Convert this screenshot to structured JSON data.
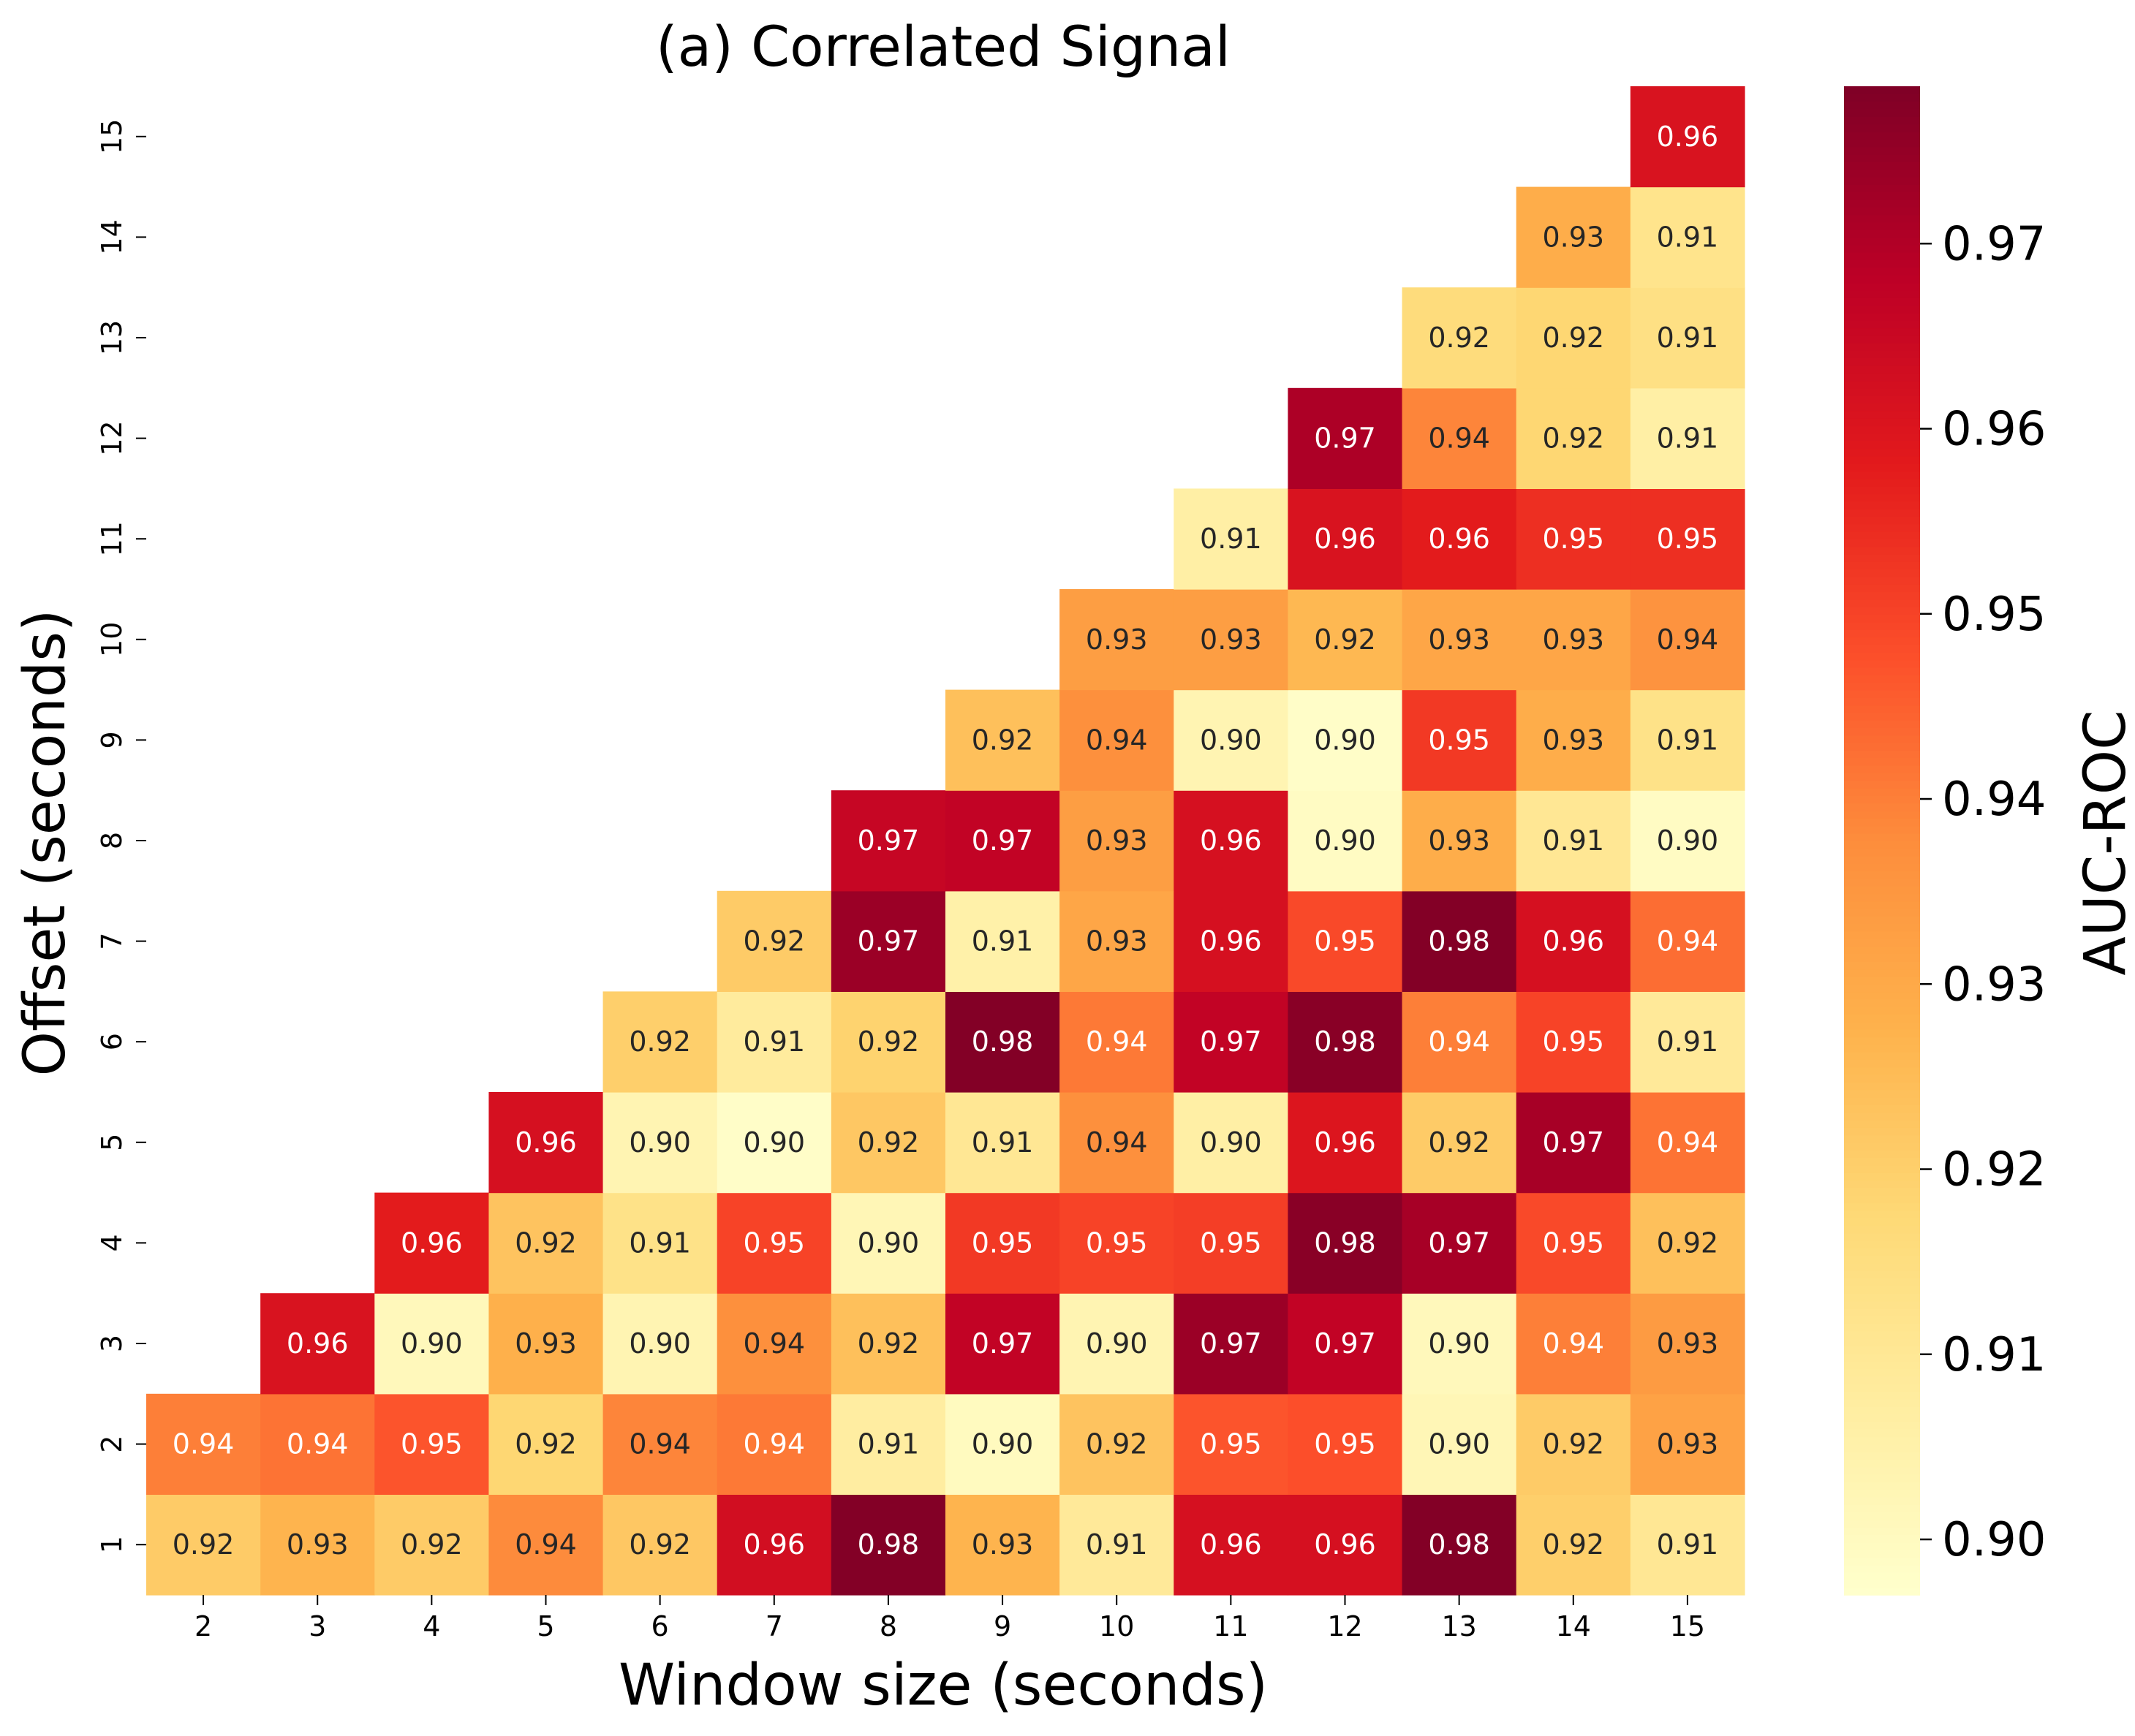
{
  "chart_data": {
    "type": "heatmap",
    "title": "(a) Correlated Signal",
    "xlabel": "Window size (seconds)",
    "ylabel": "Offset (seconds)",
    "x_categories": [
      "2",
      "3",
      "4",
      "5",
      "6",
      "7",
      "8",
      "9",
      "10",
      "11",
      "12",
      "13",
      "14",
      "15"
    ],
    "y_categories": [
      "1",
      "2",
      "3",
      "4",
      "5",
      "6",
      "7",
      "8",
      "9",
      "10",
      "11",
      "12",
      "13",
      "14",
      "15"
    ],
    "colorbar": {
      "label": "AUC-ROC",
      "colormap": "YlOrRd",
      "vmin": 0.897,
      "vmax": 0.9785,
      "ticks": [
        "0.90",
        "0.91",
        "0.92",
        "0.93",
        "0.94",
        "0.95",
        "0.96",
        "0.97"
      ]
    },
    "values": [
      [
        "0.92",
        "0.93",
        "0.92",
        "0.94",
        "0.92",
        "0.96",
        "0.98",
        "0.93",
        "0.91",
        "0.96",
        "0.96",
        "0.98",
        "0.92",
        "0.91"
      ],
      [
        "0.94",
        "0.94",
        "0.95",
        "0.92",
        "0.94",
        "0.94",
        "0.91",
        "0.90",
        "0.92",
        "0.95",
        "0.95",
        "0.90",
        "0.92",
        "0.93"
      ],
      [
        null,
        "0.96",
        "0.90",
        "0.93",
        "0.90",
        "0.94",
        "0.92",
        "0.97",
        "0.90",
        "0.97",
        "0.97",
        "0.90",
        "0.94",
        "0.93"
      ],
      [
        null,
        null,
        "0.96",
        "0.92",
        "0.91",
        "0.95",
        "0.90",
        "0.95",
        "0.95",
        "0.95",
        "0.98",
        "0.97",
        "0.95",
        "0.92"
      ],
      [
        null,
        null,
        null,
        "0.96",
        "0.90",
        "0.90",
        "0.92",
        "0.91",
        "0.94",
        "0.90",
        "0.96",
        "0.92",
        "0.97",
        "0.94"
      ],
      [
        null,
        null,
        null,
        null,
        "0.92",
        "0.91",
        "0.92",
        "0.98",
        "0.94",
        "0.97",
        "0.98",
        "0.94",
        "0.95",
        "0.91"
      ],
      [
        null,
        null,
        null,
        null,
        null,
        "0.92",
        "0.97",
        "0.91",
        "0.93",
        "0.96",
        "0.95",
        "0.98",
        "0.96",
        "0.94"
      ],
      [
        null,
        null,
        null,
        null,
        null,
        null,
        "0.97",
        "0.97",
        "0.93",
        "0.96",
        "0.90",
        "0.93",
        "0.91",
        "0.90"
      ],
      [
        null,
        null,
        null,
        null,
        null,
        null,
        null,
        "0.92",
        "0.94",
        "0.90",
        "0.90",
        "0.95",
        "0.93",
        "0.91"
      ],
      [
        null,
        null,
        null,
        null,
        null,
        null,
        null,
        null,
        "0.93",
        "0.93",
        "0.92",
        "0.93",
        "0.93",
        "0.94"
      ],
      [
        null,
        null,
        null,
        null,
        null,
        null,
        null,
        null,
        null,
        "0.91",
        "0.96",
        "0.96",
        "0.95",
        "0.95"
      ],
      [
        null,
        null,
        null,
        null,
        null,
        null,
        null,
        null,
        null,
        null,
        "0.97",
        "0.94",
        "0.92",
        "0.91"
      ],
      [
        null,
        null,
        null,
        null,
        null,
        null,
        null,
        null,
        null,
        null,
        null,
        "0.92",
        "0.92",
        "0.91"
      ],
      [
        null,
        null,
        null,
        null,
        null,
        null,
        null,
        null,
        null,
        null,
        null,
        null,
        "0.93",
        "0.91"
      ],
      [
        null,
        null,
        null,
        null,
        null,
        null,
        null,
        null,
        null,
        null,
        null,
        null,
        null,
        "0.96"
      ]
    ],
    "cell_color_values": [
      [
        0.921,
        0.927,
        0.921,
        0.938,
        0.922,
        0.963,
        0.978,
        0.927,
        0.909,
        0.962,
        0.962,
        0.978,
        0.92,
        0.91
      ],
      [
        0.94,
        0.942,
        0.947,
        0.918,
        0.939,
        0.941,
        0.907,
        0.9,
        0.923,
        0.947,
        0.948,
        0.902,
        0.921,
        0.932
      ],
      [
        null,
        0.961,
        0.901,
        0.928,
        0.903,
        0.937,
        0.924,
        0.967,
        0.903,
        0.974,
        0.967,
        0.901,
        0.94,
        0.934
      ],
      [
        null,
        null,
        0.958,
        0.923,
        0.913,
        0.95,
        0.902,
        0.952,
        0.95,
        0.951,
        0.977,
        0.972,
        0.949,
        0.924
      ],
      [
        null,
        null,
        null,
        0.962,
        0.903,
        0.898,
        0.922,
        0.91,
        0.937,
        0.906,
        0.96,
        0.921,
        0.972,
        0.942
      ],
      [
        null,
        null,
        null,
        null,
        0.92,
        0.908,
        0.919,
        0.978,
        0.941,
        0.967,
        0.977,
        0.94,
        0.95,
        0.909
      ],
      [
        null,
        null,
        null,
        null,
        null,
        0.921,
        0.974,
        0.905,
        0.931,
        0.962,
        0.949,
        0.978,
        0.962,
        0.943
      ],
      [
        null,
        null,
        null,
        null,
        null,
        null,
        0.966,
        0.967,
        0.933,
        0.962,
        0.899,
        0.929,
        0.91,
        0.899
      ],
      [
        null,
        null,
        null,
        null,
        null,
        null,
        null,
        0.924,
        0.937,
        0.903,
        0.898,
        0.952,
        0.929,
        0.913
      ],
      [
        null,
        null,
        null,
        null,
        null,
        null,
        null,
        null,
        0.933,
        0.933,
        0.926,
        0.931,
        0.931,
        0.936
      ],
      [
        null,
        null,
        null,
        null,
        null,
        null,
        null,
        null,
        null,
        0.906,
        0.961,
        0.958,
        0.954,
        0.954
      ],
      [
        null,
        null,
        null,
        null,
        null,
        null,
        null,
        null,
        null,
        null,
        0.971,
        0.939,
        0.918,
        0.906
      ],
      [
        null,
        null,
        null,
        null,
        null,
        null,
        null,
        null,
        null,
        null,
        null,
        0.916,
        0.918,
        0.914
      ],
      [
        null,
        null,
        null,
        null,
        null,
        null,
        null,
        null,
        null,
        null,
        null,
        null,
        0.929,
        0.912
      ],
      [
        null,
        null,
        null,
        null,
        null,
        null,
        null,
        null,
        null,
        null,
        null,
        null,
        null,
        0.961
      ]
    ],
    "grid": false,
    "legend": "colorbar-right"
  }
}
